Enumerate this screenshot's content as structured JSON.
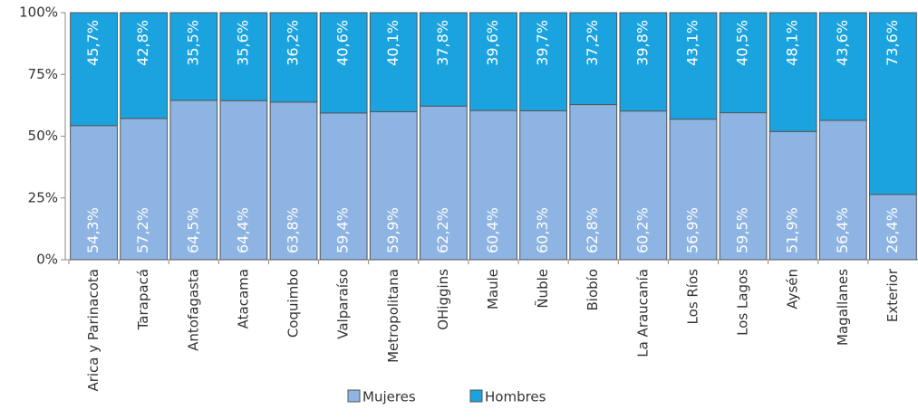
{
  "chart_data": {
    "type": "stacked_bar",
    "categories": [
      "Arica y Parinacota",
      "Tarapacá",
      "Antofagasta",
      "Atacama",
      "Coquimbo",
      "Valparaíso",
      "Metropolitana",
      "OHiggins",
      "Maule",
      "Ñuble",
      "Biobío",
      "La Araucanía",
      "Los Ríos",
      "Los Lagos",
      "Aysén",
      "Magallanes",
      "Exterior"
    ],
    "series": [
      {
        "name": "Mujeres",
        "color": "#8db4e2",
        "values": [
          54.3,
          57.2,
          64.5,
          64.4,
          63.8,
          59.4,
          59.9,
          62.2,
          60.4,
          60.3,
          62.8,
          60.2,
          56.9,
          59.5,
          51.9,
          56.4,
          26.4
        ],
        "value_labels": [
          "54,3%",
          "57,2%",
          "64,5%",
          "64,4%",
          "63,8%",
          "59,4%",
          "59,9%",
          "62,2%",
          "60,4%",
          "60,3%",
          "62,8%",
          "60,2%",
          "56,9%",
          "59,5%",
          "51,9%",
          "56,4%",
          "26,4%"
        ]
      },
      {
        "name": "Hombres",
        "color": "#1ba3e0",
        "values": [
          45.7,
          42.8,
          35.5,
          35.6,
          36.2,
          40.6,
          40.1,
          37.8,
          39.6,
          39.7,
          37.2,
          39.8,
          43.1,
          40.5,
          48.1,
          43.6,
          73.6
        ],
        "value_labels": [
          "45,7%",
          "42,8%",
          "35,5%",
          "35,6%",
          "36,2%",
          "40,6%",
          "40,1%",
          "37,8%",
          "39,6%",
          "39,7%",
          "37,2%",
          "39,8%",
          "43,1%",
          "40,5%",
          "48,1%",
          "43,6%",
          "73,6%"
        ]
      }
    ],
    "ylim": [
      0,
      100
    ],
    "yticks": [
      {
        "value": 0,
        "label": "0%"
      },
      {
        "value": 25,
        "label": "25%"
      },
      {
        "value": 50,
        "label": "50%"
      },
      {
        "value": 75,
        "label": "75%"
      },
      {
        "value": 100,
        "label": "100%"
      }
    ],
    "legend": "bottom"
  }
}
